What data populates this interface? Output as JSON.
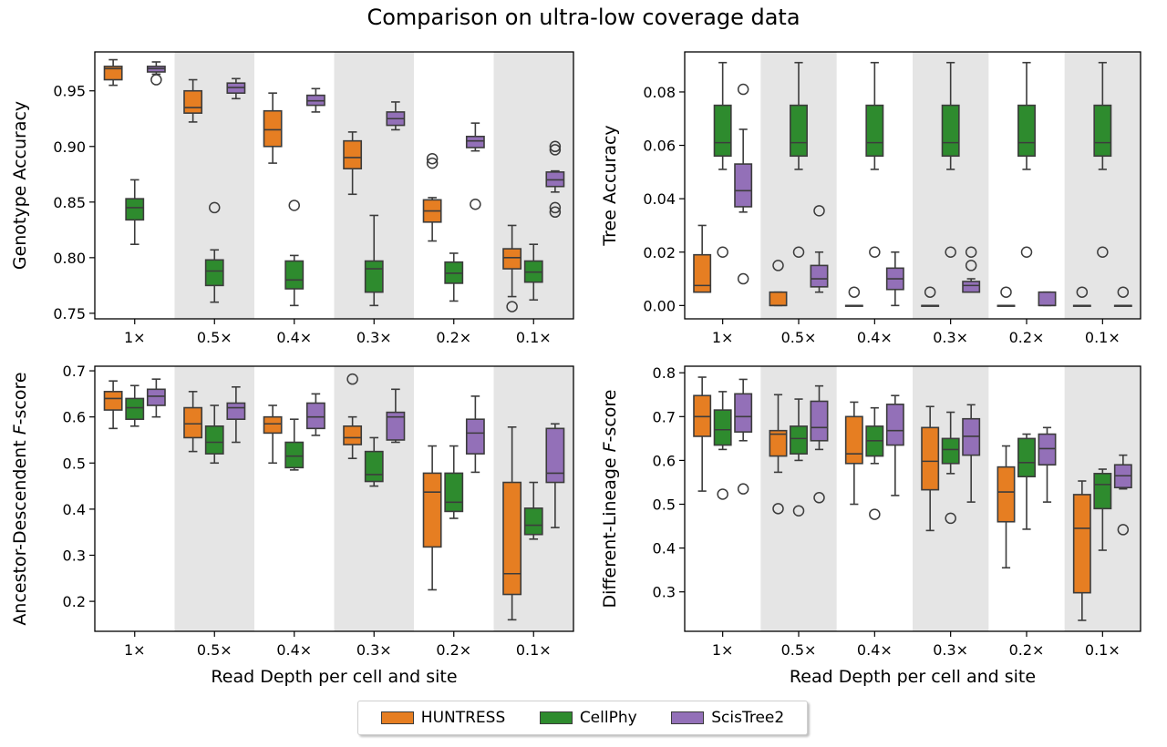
{
  "title": "Comparison on ultra-low coverage data",
  "chart_data": [
    {
      "type": "box",
      "ylabel": "Genotype Accuracy",
      "xlabel": "",
      "categories": [
        "1×",
        "0.5×",
        "0.4×",
        "0.3×",
        "0.2×",
        "0.1×"
      ],
      "ylim": [
        0.745,
        0.985
      ],
      "yticks": [
        0.75,
        0.8,
        0.85,
        0.9,
        0.95
      ],
      "ytick_labels": [
        "0.75",
        "0.80",
        "0.85",
        "0.90",
        "0.95"
      ],
      "series": [
        {
          "name": "HUNTRESS",
          "boxes": [
            {
              "min": 0.955,
              "q1": 0.96,
              "median": 0.97,
              "q3": 0.972,
              "max": 0.978,
              "outliers": []
            },
            {
              "min": 0.922,
              "q1": 0.93,
              "median": 0.935,
              "q3": 0.95,
              "max": 0.96,
              "outliers": []
            },
            {
              "min": 0.885,
              "q1": 0.9,
              "median": 0.915,
              "q3": 0.932,
              "max": 0.948,
              "outliers": []
            },
            {
              "min": 0.857,
              "q1": 0.88,
              "median": 0.89,
              "q3": 0.905,
              "max": 0.913,
              "outliers": []
            },
            {
              "min": 0.815,
              "q1": 0.832,
              "median": 0.842,
              "q3": 0.852,
              "max": 0.854,
              "outliers": [
                0.885,
                0.889
              ]
            },
            {
              "min": 0.765,
              "q1": 0.79,
              "median": 0.8,
              "q3": 0.808,
              "max": 0.829,
              "outliers": [
                0.756
              ]
            }
          ]
        },
        {
          "name": "CellPhy",
          "boxes": [
            {
              "min": 0.812,
              "q1": 0.834,
              "median": 0.845,
              "q3": 0.853,
              "max": 0.87,
              "outliers": []
            },
            {
              "min": 0.76,
              "q1": 0.775,
              "median": 0.788,
              "q3": 0.798,
              "max": 0.807,
              "outliers": [
                0.845
              ]
            },
            {
              "min": 0.757,
              "q1": 0.772,
              "median": 0.78,
              "q3": 0.797,
              "max": 0.802,
              "outliers": [
                0.847
              ]
            },
            {
              "min": 0.757,
              "q1": 0.769,
              "median": 0.79,
              "q3": 0.797,
              "max": 0.838,
              "outliers": []
            },
            {
              "min": 0.761,
              "q1": 0.777,
              "median": 0.786,
              "q3": 0.796,
              "max": 0.804,
              "outliers": []
            },
            {
              "min": 0.762,
              "q1": 0.778,
              "median": 0.787,
              "q3": 0.797,
              "max": 0.812,
              "outliers": []
            }
          ]
        },
        {
          "name": "ScisTree2",
          "boxes": [
            {
              "min": 0.965,
              "q1": 0.967,
              "median": 0.97,
              "q3": 0.972,
              "max": 0.976,
              "outliers": [
                0.96
              ]
            },
            {
              "min": 0.943,
              "q1": 0.948,
              "median": 0.953,
              "q3": 0.957,
              "max": 0.961,
              "outliers": []
            },
            {
              "min": 0.931,
              "q1": 0.937,
              "median": 0.941,
              "q3": 0.946,
              "max": 0.952,
              "outliers": []
            },
            {
              "min": 0.915,
              "q1": 0.919,
              "median": 0.925,
              "q3": 0.931,
              "max": 0.94,
              "outliers": []
            },
            {
              "min": 0.896,
              "q1": 0.899,
              "median": 0.905,
              "q3": 0.909,
              "max": 0.921,
              "outliers": [
                0.848
              ]
            },
            {
              "min": 0.859,
              "q1": 0.864,
              "median": 0.87,
              "q3": 0.877,
              "max": 0.878,
              "outliers": [
                0.841,
                0.845,
                0.897,
                0.9
              ]
            }
          ]
        }
      ]
    },
    {
      "type": "box",
      "ylabel": "Tree Accuracy",
      "xlabel": "",
      "categories": [
        "1×",
        "0.5×",
        "0.4×",
        "0.3×",
        "0.2×",
        "0.1×"
      ],
      "ylim": [
        -0.005,
        0.095
      ],
      "yticks": [
        0.0,
        0.02,
        0.04,
        0.06,
        0.08
      ],
      "ytick_labels": [
        "0.00",
        "0.02",
        "0.04",
        "0.06",
        "0.08"
      ],
      "series": [
        {
          "name": "HUNTRESS",
          "boxes": [
            {
              "min": 0.005,
              "q1": 0.005,
              "median": 0.0075,
              "q3": 0.019,
              "max": 0.03,
              "outliers": []
            },
            {
              "min": 0.0,
              "q1": 0.0,
              "median": 0.0,
              "q3": 0.005,
              "max": 0.005,
              "outliers": [
                0.015
              ]
            },
            {
              "min": 0.0,
              "q1": 0.0,
              "median": 0.0,
              "q3": 0.0,
              "max": 0.0,
              "outliers": [
                0.005
              ]
            },
            {
              "min": 0.0,
              "q1": 0.0,
              "median": 0.0,
              "q3": 0.0,
              "max": 0.0,
              "outliers": [
                0.005
              ]
            },
            {
              "min": 0.0,
              "q1": 0.0,
              "median": 0.0,
              "q3": 0.0,
              "max": 0.0,
              "outliers": [
                0.005
              ]
            },
            {
              "min": 0.0,
              "q1": 0.0,
              "median": 0.0,
              "q3": 0.0,
              "max": 0.0,
              "outliers": [
                0.005
              ]
            }
          ]
        },
        {
          "name": "CellPhy",
          "boxes": [
            {
              "min": 0.051,
              "q1": 0.056,
              "median": 0.061,
              "q3": 0.075,
              "max": 0.091,
              "outliers": [
                0.02
              ]
            },
            {
              "min": 0.051,
              "q1": 0.056,
              "median": 0.061,
              "q3": 0.075,
              "max": 0.091,
              "outliers": [
                0.02
              ]
            },
            {
              "min": 0.051,
              "q1": 0.056,
              "median": 0.061,
              "q3": 0.075,
              "max": 0.091,
              "outliers": [
                0.02
              ]
            },
            {
              "min": 0.051,
              "q1": 0.056,
              "median": 0.061,
              "q3": 0.075,
              "max": 0.091,
              "outliers": [
                0.02
              ]
            },
            {
              "min": 0.051,
              "q1": 0.056,
              "median": 0.061,
              "q3": 0.075,
              "max": 0.091,
              "outliers": [
                0.02
              ]
            },
            {
              "min": 0.051,
              "q1": 0.056,
              "median": 0.061,
              "q3": 0.075,
              "max": 0.091,
              "outliers": [
                0.02
              ]
            }
          ]
        },
        {
          "name": "ScisTree2",
          "boxes": [
            {
              "min": 0.035,
              "q1": 0.037,
              "median": 0.043,
              "q3": 0.053,
              "max": 0.066,
              "outliers": [
                0.01,
                0.081
              ]
            },
            {
              "min": 0.005,
              "q1": 0.007,
              "median": 0.01,
              "q3": 0.015,
              "max": 0.02,
              "outliers": [
                0.0355
              ]
            },
            {
              "min": 0.0,
              "q1": 0.006,
              "median": 0.01,
              "q3": 0.014,
              "max": 0.02,
              "outliers": []
            },
            {
              "min": 0.005,
              "q1": 0.005,
              "median": 0.0075,
              "q3": 0.009,
              "max": 0.01,
              "outliers": [
                0.015,
                0.02
              ]
            },
            {
              "min": 0.0,
              "q1": 0.0,
              "median": 0.0,
              "q3": 0.005,
              "max": 0.005,
              "outliers": []
            },
            {
              "min": 0.0,
              "q1": 0.0,
              "median": 0.0,
              "q3": 0.0,
              "max": 0.0,
              "outliers": [
                0.005
              ]
            }
          ]
        }
      ]
    },
    {
      "type": "box",
      "ylabel": "Ancestor-Descendent F-score",
      "xlabel": "Read Depth per cell and site",
      "categories": [
        "1×",
        "0.5×",
        "0.4×",
        "0.3×",
        "0.2×",
        "0.1×"
      ],
      "ylim": [
        0.135,
        0.71
      ],
      "yticks": [
        0.2,
        0.3,
        0.4,
        0.5,
        0.6,
        0.7
      ],
      "ytick_labels": [
        "0.2",
        "0.3",
        "0.4",
        "0.5",
        "0.6",
        "0.7"
      ],
      "series": [
        {
          "name": "HUNTRESS",
          "boxes": [
            {
              "min": 0.575,
              "q1": 0.615,
              "median": 0.64,
              "q3": 0.655,
              "max": 0.678,
              "outliers": []
            },
            {
              "min": 0.525,
              "q1": 0.555,
              "median": 0.585,
              "q3": 0.62,
              "max": 0.655,
              "outliers": []
            },
            {
              "min": 0.5,
              "q1": 0.565,
              "median": 0.585,
              "q3": 0.6,
              "max": 0.625,
              "outliers": []
            },
            {
              "min": 0.51,
              "q1": 0.54,
              "median": 0.555,
              "q3": 0.58,
              "max": 0.6,
              "outliers": [
                0.682
              ]
            },
            {
              "min": 0.225,
              "q1": 0.318,
              "median": 0.437,
              "q3": 0.478,
              "max": 0.537,
              "outliers": []
            },
            {
              "min": 0.16,
              "q1": 0.215,
              "median": 0.26,
              "q3": 0.458,
              "max": 0.578,
              "outliers": []
            }
          ]
        },
        {
          "name": "CellPhy",
          "boxes": [
            {
              "min": 0.58,
              "q1": 0.595,
              "median": 0.62,
              "q3": 0.64,
              "max": 0.668,
              "outliers": []
            },
            {
              "min": 0.5,
              "q1": 0.52,
              "median": 0.545,
              "q3": 0.58,
              "max": 0.625,
              "outliers": []
            },
            {
              "min": 0.485,
              "q1": 0.49,
              "median": 0.515,
              "q3": 0.545,
              "max": 0.595,
              "outliers": []
            },
            {
              "min": 0.45,
              "q1": 0.46,
              "median": 0.475,
              "q3": 0.525,
              "max": 0.555,
              "outliers": []
            },
            {
              "min": 0.38,
              "q1": 0.395,
              "median": 0.415,
              "q3": 0.478,
              "max": 0.537,
              "outliers": []
            },
            {
              "min": 0.335,
              "q1": 0.345,
              "median": 0.365,
              "q3": 0.402,
              "max": 0.458,
              "outliers": []
            }
          ]
        },
        {
          "name": "ScisTree2",
          "boxes": [
            {
              "min": 0.6,
              "q1": 0.625,
              "median": 0.645,
              "q3": 0.66,
              "max": 0.682,
              "outliers": []
            },
            {
              "min": 0.545,
              "q1": 0.595,
              "median": 0.62,
              "q3": 0.63,
              "max": 0.665,
              "outliers": []
            },
            {
              "min": 0.56,
              "q1": 0.575,
              "median": 0.6,
              "q3": 0.63,
              "max": 0.65,
              "outliers": []
            },
            {
              "min": 0.545,
              "q1": 0.55,
              "median": 0.6,
              "q3": 0.61,
              "max": 0.66,
              "outliers": []
            },
            {
              "min": 0.48,
              "q1": 0.52,
              "median": 0.565,
              "q3": 0.595,
              "max": 0.645,
              "outliers": []
            },
            {
              "min": 0.36,
              "q1": 0.458,
              "median": 0.478,
              "q3": 0.575,
              "max": 0.585,
              "outliers": []
            }
          ]
        }
      ]
    },
    {
      "type": "box",
      "ylabel": "Different-Lineage F-score",
      "xlabel": "Read Depth per cell and site",
      "categories": [
        "1×",
        "0.5×",
        "0.4×",
        "0.3×",
        "0.2×",
        "0.1×"
      ],
      "ylim": [
        0.21,
        0.815
      ],
      "yticks": [
        0.3,
        0.4,
        0.5,
        0.6,
        0.7,
        0.8
      ],
      "ytick_labels": [
        "0.3",
        "0.4",
        "0.5",
        "0.6",
        "0.7",
        "0.8"
      ],
      "series": [
        {
          "name": "HUNTRESS",
          "boxes": [
            {
              "min": 0.53,
              "q1": 0.655,
              "median": 0.7,
              "q3": 0.748,
              "max": 0.79,
              "outliers": []
            },
            {
              "min": 0.573,
              "q1": 0.61,
              "median": 0.66,
              "q3": 0.668,
              "max": 0.75,
              "outliers": [
                0.49
              ]
            },
            {
              "min": 0.5,
              "q1": 0.593,
              "median": 0.615,
              "q3": 0.7,
              "max": 0.733,
              "outliers": []
            },
            {
              "min": 0.44,
              "q1": 0.533,
              "median": 0.598,
              "q3": 0.675,
              "max": 0.723,
              "outliers": []
            },
            {
              "min": 0.355,
              "q1": 0.46,
              "median": 0.528,
              "q3": 0.585,
              "max": 0.633,
              "outliers": []
            },
            {
              "min": 0.235,
              "q1": 0.298,
              "median": 0.445,
              "q3": 0.522,
              "max": 0.553,
              "outliers": []
            }
          ]
        },
        {
          "name": "CellPhy",
          "boxes": [
            {
              "min": 0.625,
              "q1": 0.635,
              "median": 0.67,
              "q3": 0.715,
              "max": 0.757,
              "outliers": [
                0.523
              ]
            },
            {
              "min": 0.6,
              "q1": 0.615,
              "median": 0.65,
              "q3": 0.678,
              "max": 0.74,
              "outliers": [
                0.485
              ]
            },
            {
              "min": 0.593,
              "q1": 0.61,
              "median": 0.645,
              "q3": 0.678,
              "max": 0.72,
              "outliers": [
                0.477
              ]
            },
            {
              "min": 0.57,
              "q1": 0.593,
              "median": 0.625,
              "q3": 0.65,
              "max": 0.71,
              "outliers": [
                0.468
              ]
            },
            {
              "min": 0.443,
              "q1": 0.563,
              "median": 0.595,
              "q3": 0.65,
              "max": 0.66,
              "outliers": []
            },
            {
              "min": 0.395,
              "q1": 0.49,
              "median": 0.545,
              "q3": 0.57,
              "max": 0.58,
              "outliers": []
            }
          ]
        },
        {
          "name": "ScisTree2",
          "boxes": [
            {
              "min": 0.645,
              "q1": 0.665,
              "median": 0.7,
              "q3": 0.752,
              "max": 0.785,
              "outliers": [
                0.535
              ]
            },
            {
              "min": 0.625,
              "q1": 0.645,
              "median": 0.675,
              "q3": 0.735,
              "max": 0.77,
              "outliers": [
                0.515
              ]
            },
            {
              "min": 0.52,
              "q1": 0.635,
              "median": 0.668,
              "q3": 0.728,
              "max": 0.748,
              "outliers": []
            },
            {
              "min": 0.505,
              "q1": 0.612,
              "median": 0.655,
              "q3": 0.695,
              "max": 0.727,
              "outliers": []
            },
            {
              "min": 0.505,
              "q1": 0.59,
              "median": 0.627,
              "q3": 0.66,
              "max": 0.675,
              "outliers": []
            },
            {
              "min": 0.535,
              "q1": 0.538,
              "median": 0.565,
              "q3": 0.59,
              "max": 0.612,
              "outliers": [
                0.442
              ]
            }
          ]
        }
      ]
    }
  ],
  "legend": {
    "entries": [
      {
        "label": "HUNTRESS",
        "color": "#e67e22"
      },
      {
        "label": "CellPhy",
        "color": "#2e8b2e"
      },
      {
        "label": "ScisTree2",
        "color": "#9370b8"
      }
    ]
  },
  "style": {
    "shade_color": "#e5e5e5",
    "edge_color": "#3c3c3c",
    "shaded_categories": [
      1,
      3,
      5
    ]
  }
}
